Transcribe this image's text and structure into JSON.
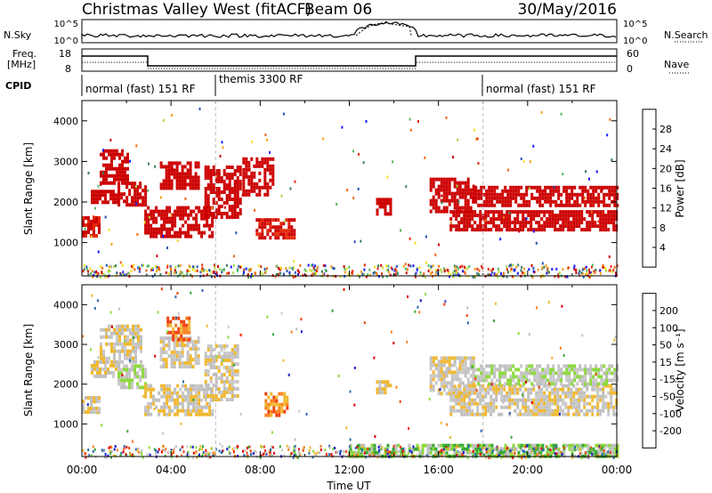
{
  "header": {
    "radar_title": "Christmas Valley West (fitACF)",
    "beam": "Beam 06",
    "date": "30/May/2016"
  },
  "top_panels": {
    "nsky_label": "N.Sky",
    "nsearch_label": "N.Search",
    "nsky_ticks": [
      "10^5",
      "10^0"
    ],
    "nsearch_ticks": [
      "10^5",
      "10^0"
    ],
    "freq_label_1": "Freq.",
    "freq_label_2": "[MHz]",
    "freq_ticks": [
      "18",
      "8"
    ],
    "nave_label": "Nave",
    "nave_ticks": [
      "60",
      "0"
    ],
    "cpid_label": "CPID",
    "cpid_segments": [
      {
        "label": "normal (fast) 151 RF",
        "start_hour": 0
      },
      {
        "label": "themis 3300 RF",
        "start_hour": 6
      },
      {
        "label": "normal (fast) 151 RF",
        "start_hour": 18
      }
    ]
  },
  "chart_data": [
    {
      "type": "heatmap",
      "panel": "power",
      "ylabel": "Slant Range [km]",
      "yticks": [
        1000,
        2000,
        3000,
        4000
      ],
      "ylim": [
        180,
        4500
      ],
      "xlim_hours": [
        0,
        24
      ],
      "colorbar_label": "Power [dB]",
      "colorbar_ticks": [
        "28",
        "24",
        "20",
        "16",
        "12",
        "8",
        "4"
      ],
      "colorbar_range": [
        0,
        30
      ],
      "colors": [
        "#1a1aff",
        "#2856b4",
        "#3a8060",
        "#54b86a",
        "#a8d846",
        "#f0e020",
        "#f7a020",
        "#f36a10",
        "#e62a0a",
        "#cc0000"
      ],
      "bands": [
        {
          "t0": 0.0,
          "t1": 0.8,
          "r0": 1150,
          "r1": 1650,
          "level": 9
        },
        {
          "t0": 0.4,
          "t1": 1.6,
          "r0": 2000,
          "r1": 2300,
          "level": 14
        },
        {
          "t0": 0.8,
          "t1": 2.0,
          "r0": 2500,
          "r1": 3300,
          "level": 19
        },
        {
          "t0": 1.6,
          "t1": 2.8,
          "r0": 1900,
          "r1": 2500,
          "level": 22
        },
        {
          "t0": 2.8,
          "t1": 5.9,
          "r0": 1150,
          "r1": 1900,
          "level": 26
        },
        {
          "t0": 3.5,
          "t1": 5.2,
          "r0": 2300,
          "r1": 3000,
          "level": 16
        },
        {
          "t0": 5.5,
          "t1": 7.1,
          "r0": 1600,
          "r1": 2900,
          "level": 22
        },
        {
          "t0": 7.2,
          "t1": 8.6,
          "r0": 2200,
          "r1": 3100,
          "level": 13
        },
        {
          "t0": 7.8,
          "t1": 9.5,
          "r0": 1100,
          "r1": 1600,
          "level": 9
        },
        {
          "t0": 13.2,
          "t1": 13.8,
          "r0": 1700,
          "r1": 2100,
          "level": 16
        },
        {
          "t0": 15.6,
          "t1": 17.6,
          "r0": 1800,
          "r1": 2600,
          "level": 17
        },
        {
          "t0": 16.5,
          "t1": 24.0,
          "r0": 1300,
          "r1": 1800,
          "level": 13
        },
        {
          "t0": 17.5,
          "t1": 24.0,
          "r0": 1900,
          "r1": 2400,
          "level": 16
        }
      ]
    },
    {
      "type": "heatmap",
      "panel": "velocity",
      "ylabel": "Slant Range [km]",
      "yticks": [
        1000,
        2000,
        3000,
        4000
      ],
      "ylim": [
        180,
        4500
      ],
      "xlim_hours": [
        0,
        24
      ],
      "xticks": [
        "00:00",
        "04:00",
        "08:00",
        "12:00",
        "16:00",
        "20:00",
        "00:00"
      ],
      "xlabel": "Time UT",
      "colorbar_label": "Velocity [m s⁻¹]",
      "colorbar_ticks": [
        "200",
        "100",
        "50",
        "15",
        "-15",
        "-50",
        "-100",
        "-200"
      ],
      "colorbar_range": [
        -250,
        250
      ],
      "colors": [
        "#e00000",
        "#f04010",
        "#f78020",
        "#f0b830",
        "#c8c8c8",
        "#bfbfbf",
        "#8ad83a",
        "#38a838",
        "#2a6ab0",
        "#1a1ad0"
      ],
      "bands": [
        {
          "t0": 0.0,
          "t1": 0.8,
          "r0": 1300,
          "r1": 1700,
          "level": 4
        },
        {
          "t0": 0.4,
          "t1": 1.6,
          "r0": 2200,
          "r1": 2600,
          "level": 4
        },
        {
          "t0": 0.8,
          "t1": 2.6,
          "r0": 2600,
          "r1": 3500,
          "level": 4
        },
        {
          "t0": 1.6,
          "t1": 2.8,
          "r0": 1900,
          "r1": 2500,
          "level": 5
        },
        {
          "t0": 2.8,
          "t1": 5.9,
          "r0": 1200,
          "r1": 2000,
          "level": 4
        },
        {
          "t0": 3.5,
          "t1": 5.2,
          "r0": 2400,
          "r1": 3200,
          "level": 4
        },
        {
          "t0": 3.8,
          "t1": 4.8,
          "r0": 3100,
          "r1": 3700,
          "level": 2
        },
        {
          "t0": 5.5,
          "t1": 7.0,
          "r0": 1600,
          "r1": 3000,
          "level": 4
        },
        {
          "t0": 8.2,
          "t1": 9.2,
          "r0": 1200,
          "r1": 1800,
          "level": 2
        },
        {
          "t0": 13.2,
          "t1": 13.8,
          "r0": 1800,
          "r1": 2100,
          "level": 4
        },
        {
          "t0": 15.6,
          "t1": 17.6,
          "r0": 1800,
          "r1": 2700,
          "level": 4
        },
        {
          "t0": 16.5,
          "t1": 24.0,
          "r0": 1200,
          "r1": 2000,
          "level": 4
        },
        {
          "t0": 17.5,
          "t1": 24.0,
          "r0": 2000,
          "r1": 2500,
          "level": 5
        },
        {
          "t0": 12.0,
          "t1": 24.0,
          "r0": 180,
          "r1": 500,
          "level": 6
        }
      ]
    }
  ]
}
